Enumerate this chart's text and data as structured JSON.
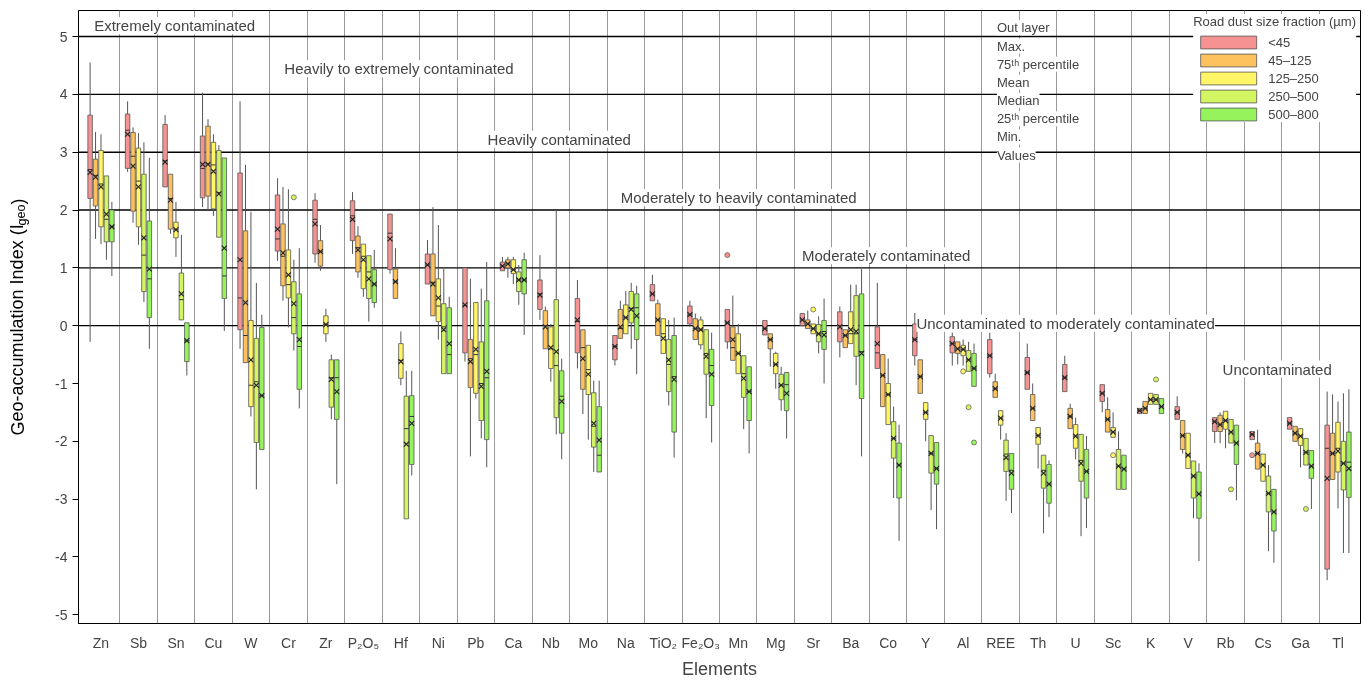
{
  "chart_data": {
    "type": "box",
    "xlabel": "Elements",
    "ylabel": "Geo-accumulation Index (I$_{geo}$)",
    "legend_title": "Road dust size fraction (µm)",
    "legend": "top right",
    "grid": "x",
    "categories": [
      "Zn",
      "Sb",
      "Sn",
      "Cu",
      "W",
      "Cr",
      "Zr",
      "P₂O₅",
      "Hf",
      "Ni",
      "Pb",
      "Ca",
      "Nb",
      "Mo",
      "Na",
      "TiO₂",
      "Fe₂O₃",
      "Mn",
      "Mg",
      "Sr",
      "Ba",
      "Co",
      "Y",
      "Al",
      "REE",
      "Th",
      "U",
      "Sc",
      "K",
      "V",
      "Rb",
      "Cs",
      "Ga",
      "Tl"
    ],
    "ylim": [
      -5.15,
      5.45
    ],
    "yticks": [
      -5,
      -4,
      -3,
      -2,
      -1,
      0,
      1,
      2,
      3,
      4,
      5
    ],
    "ref_lines": [
      {
        "axis": "y",
        "value": 5,
        "color": "#000000"
      },
      {
        "axis": "y",
        "value": 4,
        "color": "#000000"
      },
      {
        "axis": "y",
        "value": 3,
        "color": "#000000"
      },
      {
        "axis": "y",
        "value": 2,
        "color": "#000000"
      },
      {
        "axis": "y",
        "value": 1,
        "color": "#000000"
      },
      {
        "axis": "y",
        "value": 0,
        "color": "#000000"
      }
    ],
    "annotations": [
      "Extremely contaminated",
      "Heavily to extremely contaminated",
      "Heavily contaminated",
      "Moderately to heavily contaminated",
      "Moderately contaminated",
      "Uncontaminated to moderately contaminated",
      "Uncontaminated",
      "Out layer",
      "Max.",
      "75ᵗʰ percentile",
      "Mean",
      "Median",
      "25ᵗʰ percentile",
      "Min.",
      "Values"
    ],
    "series": [
      {
        "name": "<45",
        "color": "#f59393",
        "boxes": [
          {
            "low": -0.28,
            "q1": 2.2,
            "median": 2.7,
            "q3": 3.64,
            "high": 4.55,
            "mean": 2.65
          },
          {
            "low": 2.66,
            "q1": 2.72,
            "median": 3.38,
            "q3": 3.66,
            "high": 3.88,
            "mean": 3.31
          },
          {
            "low": 2.4,
            "q1": 2.4,
            "median": 2.85,
            "q3": 3.48,
            "high": 3.64,
            "mean": 2.83
          },
          {
            "low": 2.05,
            "q1": 2.21,
            "median": 2.72,
            "q3": 3.28,
            "high": 4.03,
            "mean": 2.79
          },
          {
            "low": -0.4,
            "q1": -0.07,
            "median": 0.48,
            "q3": 2.64,
            "high": 3.88,
            "mean": 1.14
          },
          {
            "low": 1.12,
            "q1": 1.29,
            "median": 1.5,
            "q3": 2.26,
            "high": 2.55,
            "mean": 1.67
          },
          {
            "low": 1.09,
            "q1": 1.24,
            "median": 1.84,
            "q3": 2.17,
            "high": 2.29,
            "mean": 1.76
          },
          {
            "low": 1.24,
            "q1": 1.47,
            "median": 1.9,
            "q3": 2.16,
            "high": 2.31,
            "mean": 1.84
          },
          {
            "low": 0.9,
            "q1": 0.97,
            "median": 1.6,
            "q3": 1.93,
            "high": 1.93,
            "mean": 1.5
          },
          {
            "low": 0.72,
            "q1": 0.72,
            "median": 1.05,
            "q3": 1.24,
            "high": 1.48,
            "mean": 1.05
          },
          {
            "low": -0.62,
            "q1": -0.47,
            "median": 0.35,
            "q3": 1.0,
            "high": 1.0,
            "mean": 0.36
          },
          {
            "low": 0.95,
            "q1": 0.95,
            "median": 1.03,
            "q3": 1.1,
            "high": 1.19,
            "mean": 1.03
          },
          {
            "low": 0.1,
            "q1": 0.28,
            "median": 0.55,
            "q3": 0.79,
            "high": 1.22,
            "mean": 0.53
          },
          {
            "low": -0.74,
            "q1": -0.47,
            "median": 0.07,
            "q3": 0.47,
            "high": 0.79,
            "mean": 0.1
          },
          {
            "low": -0.69,
            "q1": -0.59,
            "median": -0.36,
            "q3": -0.17,
            "high": -0.17,
            "mean": -0.36
          },
          {
            "low": 0.43,
            "q1": 0.43,
            "median": 0.55,
            "q3": 0.71,
            "high": 0.88,
            "mean": 0.55
          },
          {
            "low": -0.02,
            "q1": 0.03,
            "median": 0.19,
            "q3": 0.34,
            "high": 0.43,
            "mean": 0.19
          },
          {
            "low": -0.4,
            "q1": -0.28,
            "median": 0.05,
            "q3": 0.28,
            "high": 0.28,
            "mean": 0.05,
            "outliers": [
              1.22
            ]
          },
          {
            "low": -0.16,
            "q1": -0.16,
            "median": -0.05,
            "q3": 0.09,
            "high": 0.09,
            "mean": -0.05
          },
          {
            "low": 0.0,
            "q1": 0.0,
            "median": 0.1,
            "q3": 0.21,
            "high": 0.21,
            "mean": 0.1
          },
          {
            "low": -0.55,
            "q1": -0.28,
            "median": 0.0,
            "q3": 0.24,
            "high": 0.33,
            "mean": -0.02
          },
          {
            "low": -0.74,
            "q1": -0.74,
            "median": -0.47,
            "q3": -0.02,
            "high": 0.74,
            "mean": -0.31
          },
          {
            "low": -0.69,
            "q1": -0.52,
            "median": -0.24,
            "q3": 0.03,
            "high": 0.22,
            "mean": -0.24
          },
          {
            "low": -0.69,
            "q1": -0.47,
            "median": -0.31,
            "q3": -0.19,
            "high": -0.12,
            "mean": -0.31
          },
          {
            "low": -0.9,
            "q1": -0.83,
            "median": -0.52,
            "q3": -0.24,
            "high": -0.12,
            "mean": -0.52
          },
          {
            "low": -1.1,
            "q1": -1.1,
            "median": -0.81,
            "q3": -0.55,
            "high": -0.31,
            "mean": -0.81
          },
          {
            "low": -1.14,
            "q1": -1.14,
            "median": -0.9,
            "q3": -0.67,
            "high": -0.52,
            "mean": -0.9
          },
          {
            "low": -1.5,
            "q1": -1.31,
            "median": -1.17,
            "q3": -1.02,
            "high": -1.02,
            "mean": -1.17
          },
          {
            "low": -1.52,
            "q1": -1.52,
            "median": -1.47,
            "q3": -1.43,
            "high": -1.43,
            "mean": -1.47
          },
          {
            "low": -1.62,
            "q1": -1.62,
            "median": -1.5,
            "q3": -1.4,
            "high": -1.22,
            "mean": -1.5
          },
          {
            "low": -2.03,
            "q1": -1.83,
            "median": -1.66,
            "q3": -1.59,
            "high": -1.59,
            "mean": -1.66
          },
          {
            "low": -1.97,
            "q1": -1.97,
            "median": -1.88,
            "q3": -1.83,
            "high": -1.83,
            "mean": -1.88,
            "outliers": [
              -2.24
            ]
          },
          {
            "low": -1.79,
            "q1": -1.79,
            "median": -1.69,
            "q3": -1.59,
            "high": -1.59,
            "mean": -1.69
          },
          {
            "low": -4.4,
            "q1": -4.21,
            "median": -2.12,
            "q3": -1.72,
            "high": -1.14,
            "mean": -2.64
          }
        ]
      },
      {
        "name": "45–125",
        "color": "#fdc15e",
        "boxes": [
          {
            "low": 1.5,
            "q1": 2.07,
            "median": 2.6,
            "q3": 2.88,
            "high": 3.35,
            "mean": 2.57
          },
          {
            "low": 1.78,
            "q1": 1.98,
            "median": 2.93,
            "q3": 3.34,
            "high": 3.43,
            "mean": 2.76
          },
          {
            "low": 1.59,
            "q1": 1.67,
            "median": 2.2,
            "q3": 2.62,
            "high": 2.62,
            "mean": 2.17
          },
          {
            "low": 2.0,
            "q1": 2.24,
            "median": 2.8,
            "q3": 3.45,
            "high": 3.57,
            "mean": 2.79
          },
          {
            "low": -0.64,
            "q1": -0.64,
            "median": -0.17,
            "q3": 1.64,
            "high": 2.78,
            "mean": 0.4
          },
          {
            "low": 0.43,
            "q1": 0.69,
            "median": 1.2,
            "q3": 1.76,
            "high": 2.4,
            "mean": 1.26
          },
          {
            "low": 0.95,
            "q1": 1.03,
            "median": 1.28,
            "q3": 1.47,
            "high": 1.74,
            "mean": 1.28
          },
          {
            "low": 0.83,
            "q1": 0.93,
            "median": 1.35,
            "q3": 1.55,
            "high": 1.72,
            "mean": 1.31
          },
          {
            "low": 0.47,
            "q1": 0.47,
            "median": 0.76,
            "q3": 0.98,
            "high": 1.34,
            "mean": 0.76
          },
          {
            "low": 0.17,
            "q1": 0.17,
            "median": 0.75,
            "q3": 1.24,
            "high": 2.05,
            "mean": 0.72
          },
          {
            "low": -2.26,
            "q1": -1.07,
            "median": -0.57,
            "q3": -0.24,
            "high": 0.81,
            "mean": -0.62
          },
          {
            "low": 0.83,
            "q1": 1.0,
            "median": 1.07,
            "q3": 1.14,
            "high": 1.19,
            "mean": 1.07
          },
          {
            "low": -0.4,
            "q1": -0.4,
            "median": 0.0,
            "q3": 0.26,
            "high": 0.33,
            "mean": -0.02
          },
          {
            "low": -1.53,
            "q1": -1.1,
            "median": -0.38,
            "q3": -0.07,
            "high": -0.07,
            "mean": -0.57
          },
          {
            "low": -0.22,
            "q1": -0.22,
            "median": -0.05,
            "q3": 0.28,
            "high": 0.43,
            "mean": -0.02
          },
          {
            "low": -0.17,
            "q1": -0.17,
            "median": 0.1,
            "q3": 0.38,
            "high": 0.45,
            "mean": 0.1
          },
          {
            "low": -0.24,
            "q1": -0.24,
            "median": -0.05,
            "q3": 0.12,
            "high": 0.21,
            "mean": -0.05
          },
          {
            "low": -0.6,
            "q1": -0.6,
            "median": -0.38,
            "q3": -0.02,
            "high": 0.52,
            "mean": -0.24
          },
          {
            "low": -0.71,
            "q1": -0.4,
            "median": -0.24,
            "q3": -0.14,
            "high": -0.14,
            "mean": -0.24
          },
          {
            "low": -0.05,
            "q1": -0.05,
            "median": 0.03,
            "q3": 0.1,
            "high": 0.26,
            "mean": 0.03
          },
          {
            "low": -0.38,
            "q1": -0.38,
            "median": -0.17,
            "q3": -0.07,
            "high": -0.07,
            "mean": -0.17
          },
          {
            "low": -1.4,
            "q1": -1.4,
            "median": -0.86,
            "q3": -0.5,
            "high": -0.5,
            "mean": -0.86
          },
          {
            "low": -1.17,
            "q1": -1.17,
            "median": -0.88,
            "q3": -0.59,
            "high": -0.59,
            "mean": -0.88
          },
          {
            "low": -0.67,
            "q1": -0.48,
            "median": -0.4,
            "q3": -0.28,
            "high": -0.28,
            "mean": -0.4
          },
          {
            "low": -1.24,
            "q1": -1.24,
            "median": -1.09,
            "q3": -0.97,
            "high": -0.83,
            "mean": -1.09
          },
          {
            "low": -1.64,
            "q1": -1.64,
            "median": -1.43,
            "q3": -1.19,
            "high": -1.0,
            "mean": -1.43
          },
          {
            "low": -1.78,
            "q1": -1.78,
            "median": -1.57,
            "q3": -1.43,
            "high": -1.35,
            "mean": -1.57
          },
          {
            "low": -1.84,
            "q1": -1.84,
            "median": -1.62,
            "q3": -1.45,
            "high": -1.24,
            "mean": -1.62
          },
          {
            "low": -1.52,
            "q1": -1.52,
            "median": -1.43,
            "q3": -1.31,
            "high": -1.31,
            "mean": -1.43
          },
          {
            "low": -2.21,
            "q1": -2.14,
            "median": -1.9,
            "q3": -1.64,
            "high": -1.64,
            "mean": -1.9
          },
          {
            "low": -2.03,
            "q1": -1.83,
            "median": -1.71,
            "q3": -1.55,
            "high": -1.5,
            "mean": -1.71
          },
          {
            "low": -2.48,
            "q1": -2.48,
            "median": -2.21,
            "q3": -2.03,
            "high": -1.8,
            "mean": -2.21
          },
          {
            "low": -2.0,
            "q1": -2.0,
            "median": -1.86,
            "q3": -1.74,
            "high": -1.74,
            "mean": -1.86
          },
          {
            "low": -2.66,
            "q1": -2.66,
            "median": -2.21,
            "q3": -1.86,
            "high": -1.19,
            "mean": -2.21
          }
        ]
      },
      {
        "name": "125–250",
        "color": "#fff566",
        "boxes": [
          {
            "low": 1.41,
            "q1": 1.71,
            "median": 2.45,
            "q3": 3.03,
            "high": 3.31,
            "mean": 2.4
          },
          {
            "low": 1.4,
            "q1": 1.71,
            "median": 2.5,
            "q3": 3.07,
            "high": 3.33,
            "mean": 2.4
          },
          {
            "low": 1.19,
            "q1": 1.52,
            "median": 1.66,
            "q3": 1.79,
            "high": 2.14,
            "mean": 1.66
          },
          {
            "low": 1.9,
            "q1": 2.02,
            "median": 2.78,
            "q3": 3.17,
            "high": 3.31,
            "mean": 2.67
          },
          {
            "low": -1.57,
            "q1": -1.4,
            "median": -1.03,
            "q3": 0.09,
            "high": 1.97,
            "mean": -0.59
          },
          {
            "low": -0.03,
            "q1": 0.48,
            "median": 0.71,
            "q3": 1.31,
            "high": 2.36,
            "mean": 0.88
          },
          {
            "low": -0.28,
            "q1": -0.14,
            "median": 0.02,
            "q3": 0.17,
            "high": 0.29,
            "mean": 0.02
          },
          {
            "low": 0.5,
            "q1": 0.64,
            "median": 1.2,
            "q3": 1.41,
            "high": 1.41,
            "mean": 1.14
          },
          {
            "low": -1.03,
            "q1": -0.91,
            "median": -0.6,
            "q3": -0.31,
            "high": -0.1,
            "mean": -0.62
          },
          {
            "low": -0.24,
            "q1": 0.07,
            "median": 0.34,
            "q3": 0.81,
            "high": 1.74,
            "mean": 0.48
          },
          {
            "low": -1.26,
            "q1": -1.17,
            "median": -0.5,
            "q3": 0.4,
            "high": 0.4,
            "mean": -0.41
          },
          {
            "low": 0.72,
            "q1": 0.9,
            "median": 0.97,
            "q3": 1.14,
            "high": 1.19,
            "mean": 0.97
          },
          {
            "low": -0.97,
            "q1": -0.74,
            "median": -0.4,
            "q3": -0.02,
            "high": 0.03,
            "mean": -0.38
          },
          {
            "low": -1.97,
            "q1": -1.19,
            "median": -0.76,
            "q3": -0.34,
            "high": -0.34,
            "mean": -0.84
          },
          {
            "low": -0.14,
            "q1": -0.14,
            "median": 0.14,
            "q3": 0.36,
            "high": 0.6,
            "mean": 0.14
          },
          {
            "low": -0.48,
            "q1": -0.48,
            "median": -0.14,
            "q3": 0.12,
            "high": 0.12,
            "mean": -0.22
          },
          {
            "low": -0.41,
            "q1": -0.33,
            "median": -0.07,
            "q3": 0.1,
            "high": 0.16,
            "mean": -0.07
          },
          {
            "low": -0.83,
            "q1": -0.83,
            "median": -0.48,
            "q3": -0.14,
            "high": 0.03,
            "mean": -0.48
          },
          {
            "low": -1.09,
            "q1": -0.83,
            "median": -0.67,
            "q3": -0.48,
            "high": -0.45,
            "mean": -0.67
          },
          {
            "low": -0.14,
            "q1": -0.14,
            "median": -0.05,
            "q3": 0.03,
            "high": 0.03,
            "mean": -0.05,
            "outliers": [
              0.28
            ]
          },
          {
            "low": -0.31,
            "q1": -0.31,
            "median": -0.14,
            "q3": 0.24,
            "high": 0.71,
            "mean": -0.07
          },
          {
            "low": -1.71,
            "q1": -1.71,
            "median": -1.19,
            "q3": -1.0,
            "high": -0.57,
            "mean": -1.19
          },
          {
            "low": -2.0,
            "q1": -1.62,
            "median": -1.5,
            "q3": -1.33,
            "high": -1.33,
            "mean": -1.5
          },
          {
            "low": -0.69,
            "q1": -0.52,
            "median": -0.41,
            "q3": -0.34,
            "high": -0.24,
            "mean": -0.41,
            "outliers": [
              -0.79
            ]
          },
          {
            "low": -1.97,
            "q1": -1.72,
            "median": -1.6,
            "q3": -1.47,
            "high": -1.47,
            "mean": -1.6
          },
          {
            "low": -2.47,
            "q1": -2.05,
            "median": -1.9,
            "q3": -1.76,
            "high": -1.76,
            "mean": -1.9
          },
          {
            "low": -2.31,
            "q1": -2.12,
            "median": -1.91,
            "q3": -1.71,
            "high": -1.59,
            "mean": -1.91
          },
          {
            "low": -1.93,
            "q1": -1.93,
            "median": -1.84,
            "q3": -1.76,
            "high": -1.5,
            "mean": -1.84,
            "outliers": [
              -2.24
            ]
          },
          {
            "low": -1.36,
            "q1": -1.36,
            "median": -1.28,
            "q3": -1.17,
            "high": -1.17,
            "mean": -1.28
          },
          {
            "low": -2.47,
            "q1": -2.47,
            "median": -2.24,
            "q3": -1.86,
            "high": -1.86,
            "mean": -2.24
          },
          {
            "low": -2.12,
            "q1": -1.79,
            "median": -1.64,
            "q3": -1.48,
            "high": -1.48,
            "mean": -1.64
          },
          {
            "low": -2.69,
            "q1": -2.69,
            "median": -2.41,
            "q3": -2.22,
            "high": -2.22,
            "mean": -2.41
          },
          {
            "low": -2.45,
            "q1": -2.07,
            "median": -1.91,
            "q3": -1.78,
            "high": -1.78,
            "mean": -1.91
          },
          {
            "low": -3.16,
            "q1": -2.53,
            "median": -2.12,
            "q3": -1.67,
            "high": -1.31,
            "mean": -2.17
          }
        ]
      },
      {
        "name": "250–500",
        "color": "#d4f562",
        "boxes": [
          {
            "low": 1.14,
            "q1": 1.45,
            "median": 1.84,
            "q3": 2.59,
            "high": 2.59,
            "mean": 1.93
          },
          {
            "low": 0.41,
            "q1": 0.59,
            "median": 1.22,
            "q3": 2.62,
            "high": 3.17,
            "mean": 1.52
          },
          {
            "low": 0.1,
            "q1": 0.1,
            "median": 0.45,
            "q3": 0.91,
            "high": 1.57,
            "mean": 0.55
          },
          {
            "low": 1.53,
            "q1": 1.53,
            "median": 2.3,
            "q3": 3.03,
            "high": 3.12,
            "mean": 2.28
          },
          {
            "low": -2.83,
            "q1": -2.02,
            "median": -0.97,
            "q3": -0.22,
            "high": 0.74,
            "mean": -1.03
          },
          {
            "low": -0.43,
            "q1": -0.14,
            "median": 0.14,
            "q3": 0.76,
            "high": 1.14,
            "mean": 0.38,
            "outliers": [
              2.22
            ]
          },
          {
            "low": -1.62,
            "q1": -1.41,
            "median": -0.9,
            "q3": -0.59,
            "high": -0.5,
            "mean": -0.93
          },
          {
            "low": 0.07,
            "q1": 0.47,
            "median": 0.93,
            "q3": 1.21,
            "high": 1.21,
            "mean": 0.81
          },
          {
            "low": -3.34,
            "q1": -3.34,
            "median": -1.78,
            "q3": -1.22,
            "high": -0.78,
            "mean": -2.05
          },
          {
            "low": -0.83,
            "q1": -0.83,
            "median": -0.02,
            "q3": 0.38,
            "high": 0.98,
            "mean": -0.07
          },
          {
            "low": -1.95,
            "q1": -1.64,
            "median": -1.0,
            "q3": -0.28,
            "high": 0.64,
            "mean": -1.05
          },
          {
            "low": 0.36,
            "q1": 0.59,
            "median": 0.79,
            "q3": 0.93,
            "high": 1.05,
            "mean": 0.79
          },
          {
            "low": -1.88,
            "q1": -1.59,
            "median": -0.69,
            "q3": 0.45,
            "high": 2.0,
            "mean": -0.45
          },
          {
            "low": -2.53,
            "q1": -2.1,
            "median": -1.74,
            "q3": -1.16,
            "high": -0.95,
            "mean": -1.69
          },
          {
            "low": -0.4,
            "q1": 0.05,
            "median": 0.3,
            "q3": 0.59,
            "high": 0.74,
            "mean": 0.28
          },
          {
            "low": -1.38,
            "q1": -1.14,
            "median": -0.67,
            "q3": -0.24,
            "high": 0.1,
            "mean": -0.59
          },
          {
            "low": -1.6,
            "q1": -0.84,
            "median": -0.48,
            "q3": -0.07,
            "high": -0.07,
            "mean": -0.53
          },
          {
            "low": -1.79,
            "q1": -1.24,
            "median": -0.83,
            "q3": -0.52,
            "high": -0.52,
            "mean": -0.91
          },
          {
            "low": -1.47,
            "q1": -1.28,
            "median": -1.03,
            "q3": -0.84,
            "high": -0.71,
            "mean": -1.03
          },
          {
            "low": -0.48,
            "q1": -0.28,
            "median": -0.14,
            "q3": 0.02,
            "high": 0.16,
            "mean": -0.14
          },
          {
            "low": -1.03,
            "q1": -0.53,
            "median": -0.14,
            "q3": 0.52,
            "high": 0.71,
            "mean": -0.1
          },
          {
            "low": -2.98,
            "q1": -2.29,
            "median": -1.95,
            "q3": -1.66,
            "high": -1.4,
            "mean": -1.95
          },
          {
            "low": -3.19,
            "q1": -2.55,
            "median": -2.21,
            "q3": -1.9,
            "high": -1.9,
            "mean": -2.21
          },
          {
            "low": -0.79,
            "q1": -0.79,
            "median": -0.59,
            "q3": -0.43,
            "high": -0.28,
            "mean": -0.59,
            "outliers": [
              -1.41
            ]
          },
          {
            "low": -3.03,
            "q1": -2.52,
            "median": -2.22,
            "q3": -1.98,
            "high": -1.86,
            "mean": -2.28
          },
          {
            "low": -3.59,
            "q1": -2.81,
            "median": -2.5,
            "q3": -2.24,
            "high": -2.24,
            "mean": -2.55
          },
          {
            "low": -3.64,
            "q1": -2.69,
            "median": -2.33,
            "q3": -1.88,
            "high": -1.88,
            "mean": -2.38
          },
          {
            "low": -2.83,
            "q1": -2.83,
            "median": -2.43,
            "q3": -2.14,
            "high": -1.83,
            "mean": -2.43
          },
          {
            "low": -1.36,
            "q1": -1.36,
            "median": -1.28,
            "q3": -1.19,
            "high": -1.19,
            "mean": -1.28,
            "outliers": [
              -0.93
            ]
          },
          {
            "low": -3.33,
            "q1": -2.98,
            "median": -2.6,
            "q3": -2.34,
            "high": -2.34,
            "mean": -2.6
          },
          {
            "low": -2.03,
            "q1": -2.03,
            "median": -1.84,
            "q3": -1.62,
            "high": -1.62,
            "mean": -1.84,
            "outliers": [
              -2.83
            ]
          },
          {
            "low": -3.9,
            "q1": -3.22,
            "median": -2.9,
            "q3": -2.6,
            "high": -2.41,
            "mean": -2.9
          },
          {
            "low": -2.41,
            "q1": -2.41,
            "median": -2.19,
            "q3": -1.95,
            "high": -1.95,
            "mean": -2.19,
            "outliers": [
              -3.17
            ]
          },
          {
            "low": -3.93,
            "q1": -2.84,
            "median": -2.38,
            "q3": -2.0,
            "high": -1.17,
            "mean": -2.38
          }
        ]
      },
      {
        "name": "500–800",
        "color": "#97f35c",
        "boxes": [
          {
            "low": 0.86,
            "q1": 1.45,
            "median": 1.71,
            "q3": 2.0,
            "high": 2.14,
            "mean": 1.71
          },
          {
            "low": -0.4,
            "q1": 0.14,
            "median": 0.81,
            "q3": 1.81,
            "high": 2.9,
            "mean": 0.98
          },
          {
            "low": -0.86,
            "q1": -0.62,
            "median": -0.26,
            "q3": 0.05,
            "high": 0.05,
            "mean": -0.26
          },
          {
            "low": -0.09,
            "q1": 0.47,
            "median": 0.86,
            "q3": 2.9,
            "high": 2.9,
            "mean": 1.34
          },
          {
            "low": -2.14,
            "q1": -2.14,
            "median": -1.21,
            "q3": -0.03,
            "high": 0.19,
            "mean": -1.21
          },
          {
            "low": -1.43,
            "q1": -1.1,
            "median": -0.36,
            "q3": 0.55,
            "high": 1.34,
            "mean": -0.24
          },
          {
            "low": -2.74,
            "q1": -1.62,
            "median": -0.9,
            "q3": -0.59,
            "high": -0.59,
            "mean": -1.14
          },
          {
            "low": 0.31,
            "q1": 0.4,
            "median": 0.72,
            "q3": 0.97,
            "high": 1.31,
            "mean": 0.72
          },
          {
            "low": -2.59,
            "q1": -2.4,
            "median": -1.57,
            "q3": -1.21,
            "high": -0.78,
            "mean": -1.69
          },
          {
            "low": -0.83,
            "q1": -0.83,
            "median": -0.5,
            "q3": 0.31,
            "high": 0.5,
            "mean": -0.31
          },
          {
            "low": -2.45,
            "q1": -1.97,
            "median": -0.9,
            "q3": 0.43,
            "high": 1.1,
            "mean": -0.79
          },
          {
            "low": -0.16,
            "q1": 0.55,
            "median": 0.79,
            "q3": 1.14,
            "high": 1.26,
            "mean": 0.79
          },
          {
            "low": -2.31,
            "q1": -1.86,
            "median": -1.22,
            "q3": -0.78,
            "high": -0.57,
            "mean": -1.31
          },
          {
            "low": -2.53,
            "q1": -2.53,
            "median": -2.24,
            "q3": -1.4,
            "high": -0.95,
            "mean": -1.98
          },
          {
            "low": -0.84,
            "q1": -0.24,
            "median": 0.31,
            "q3": 0.55,
            "high": 0.69,
            "mean": 0.17
          },
          {
            "low": -2.28,
            "q1": -1.84,
            "median": -0.88,
            "q3": -0.17,
            "high": 0.14,
            "mean": -0.93
          },
          {
            "low": -2.02,
            "q1": -1.38,
            "median": -0.69,
            "q3": -0.41,
            "high": -0.12,
            "mean": -0.84
          },
          {
            "low": -2.21,
            "q1": -1.64,
            "median": -1.14,
            "q3": -0.71,
            "high": -0.71,
            "mean": -1.14
          },
          {
            "low": -1.95,
            "q1": -1.47,
            "median": -1.02,
            "q3": -0.81,
            "high": -0.81,
            "mean": -1.17
          },
          {
            "low": -1.0,
            "q1": -0.41,
            "median": -0.1,
            "q3": 0.09,
            "high": 0.47,
            "mean": -0.16
          },
          {
            "low": -2.26,
            "q1": -1.26,
            "median": -0.45,
            "q3": 0.55,
            "high": 0.98,
            "mean": -0.48
          },
          {
            "low": -3.72,
            "q1": -2.98,
            "median": -2.41,
            "q3": -2.03,
            "high": -1.71,
            "mean": -2.41
          },
          {
            "low": -3.52,
            "q1": -2.74,
            "median": -2.47,
            "q3": -2.02,
            "high": -2.02,
            "mean": -2.47
          },
          {
            "low": -1.05,
            "q1": -1.05,
            "median": -0.74,
            "q3": -0.48,
            "high": -0.31,
            "mean": -0.74,
            "outliers": [
              -2.02
            ]
          },
          {
            "low": -3.24,
            "q1": -2.83,
            "median": -2.5,
            "q3": -2.21,
            "high": -2.21,
            "mean": -2.55
          },
          {
            "low": -3.31,
            "q1": -3.07,
            "median": -2.74,
            "q3": -2.4,
            "high": -2.33,
            "mean": -2.74
          },
          {
            "low": -3.5,
            "q1": -2.98,
            "median": -2.52,
            "q3": -2.14,
            "high": -1.91,
            "mean": -2.52
          },
          {
            "low": -2.83,
            "q1": -2.83,
            "median": -2.48,
            "q3": -2.24,
            "high": -2.24,
            "mean": -2.48
          },
          {
            "low": -1.52,
            "q1": -1.52,
            "median": -1.4,
            "q3": -1.26,
            "high": -1.26,
            "mean": -1.4
          },
          {
            "low": -4.07,
            "q1": -3.33,
            "median": -2.91,
            "q3": -2.53,
            "high": -2.38,
            "mean": -2.91
          },
          {
            "low": -3.02,
            "q1": -2.4,
            "median": -2.03,
            "q3": -1.72,
            "high": -1.72,
            "mean": -2.03
          },
          {
            "low": -4.1,
            "q1": -3.55,
            "median": -3.22,
            "q3": -2.83,
            "high": -2.83,
            "mean": -3.22
          },
          {
            "low": -3.17,
            "q1": -2.64,
            "median": -2.43,
            "q3": -2.16,
            "high": -2.16,
            "mean": -2.43
          },
          {
            "low": -3.93,
            "q1": -2.97,
            "median": -2.36,
            "q3": -1.84,
            "high": -1.1,
            "mean": -2.47
          }
        ]
      }
    ]
  }
}
